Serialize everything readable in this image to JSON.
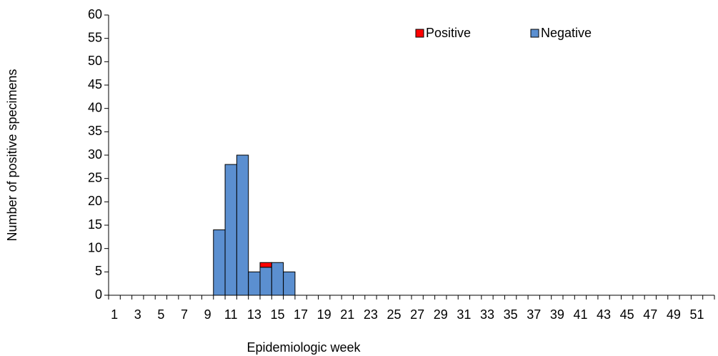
{
  "chart_data": {
    "type": "stacked-bar",
    "y_label": "Number of positive specimens",
    "x_label": "Epidemiologic week",
    "categories": [
      1,
      null,
      3,
      null,
      5,
      null,
      7,
      null,
      9,
      null,
      11,
      null,
      13,
      null,
      15,
      null,
      17,
      null,
      19,
      null,
      21,
      null,
      23,
      null,
      25,
      null,
      27,
      null,
      29,
      null,
      31,
      null,
      33,
      null,
      35,
      null,
      37,
      null,
      39,
      null,
      41,
      null,
      43,
      null,
      45,
      null,
      47,
      null,
      49,
      null,
      51,
      null
    ],
    "series": [
      {
        "name": "Negative",
        "color": "#5b8fd0",
        "values": [
          0,
          0,
          0,
          0,
          0,
          0,
          0,
          0,
          0,
          14,
          28,
          30,
          5,
          6,
          7,
          5,
          0,
          0,
          0,
          0,
          0,
          0,
          0,
          0,
          0,
          0,
          0,
          0,
          0,
          0,
          0,
          0,
          0,
          0,
          0,
          0,
          0,
          0,
          0,
          0,
          0,
          0,
          0,
          0,
          0,
          0,
          0,
          0,
          0,
          0,
          0,
          0
        ]
      },
      {
        "name": "Positive",
        "color": "#ff0000",
        "values": [
          0,
          0,
          0,
          0,
          0,
          0,
          0,
          0,
          0,
          0,
          0,
          0,
          0,
          1,
          0,
          0,
          0,
          0,
          0,
          0,
          0,
          0,
          0,
          0,
          0,
          0,
          0,
          0,
          0,
          0,
          0,
          0,
          0,
          0,
          0,
          0,
          0,
          0,
          0,
          0,
          0,
          0,
          0,
          0,
          0,
          0,
          0,
          0,
          0,
          0,
          0,
          0
        ]
      }
    ],
    "legend_order": [
      "Positive",
      "Negative"
    ],
    "ylim": [
      0,
      60
    ],
    "yticks": [
      0,
      5,
      10,
      15,
      20,
      25,
      30,
      35,
      40,
      45,
      50,
      55,
      60
    ],
    "grid": false
  }
}
